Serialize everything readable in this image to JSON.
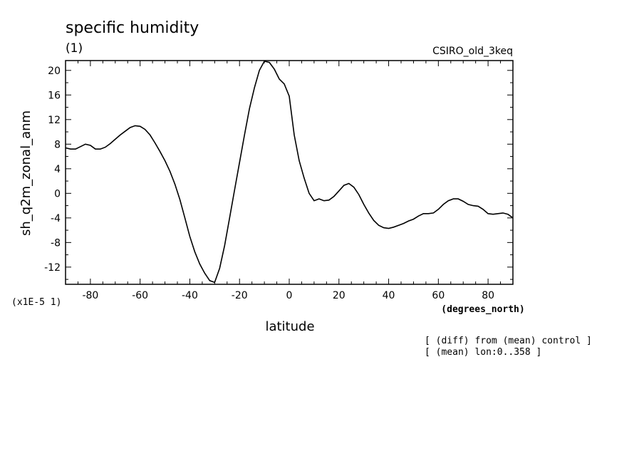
{
  "chart_data": {
    "type": "line",
    "title": "specific humidity",
    "subtitle": "(1)",
    "model_label": "CSIRO_old_3keq",
    "xlabel": "latitude",
    "xunits": "(degrees_north)",
    "ylabel": "sh_q2m_zonal_anm",
    "yscale_label": "(x1E-5 1)",
    "notes": [
      "[ (diff) from (mean) control ]",
      "[ (mean) lon:0..358 ]"
    ],
    "xlim": [
      -90,
      90
    ],
    "ylim": [
      -14.8,
      21.6
    ],
    "xticks": [
      -80,
      -60,
      -40,
      -20,
      0,
      20,
      40,
      60,
      80
    ],
    "yticks": [
      -12,
      -8,
      -4,
      0,
      4,
      8,
      12,
      16,
      20
    ],
    "series": [
      {
        "x": [
          -90,
          -88,
          -86,
          -84,
          -82,
          -80,
          -78,
          -76,
          -74,
          -72,
          -70,
          -68,
          -66,
          -64,
          -62,
          -60,
          -58,
          -56,
          -54,
          -52,
          -50,
          -48,
          -46,
          -44,
          -42,
          -40,
          -38,
          -36,
          -34,
          -32,
          -30,
          -28,
          -26,
          -24,
          -22,
          -20,
          -18,
          -16,
          -14,
          -12,
          -10,
          -8,
          -6,
          -4,
          -2,
          0,
          2,
          4,
          6,
          8,
          10,
          12,
          14,
          16,
          18,
          20,
          22,
          24,
          26,
          28,
          30,
          32,
          34,
          36,
          38,
          40,
          42,
          44,
          46,
          48,
          50,
          52,
          54,
          56,
          58,
          60,
          62,
          64,
          66,
          68,
          70,
          72,
          74,
          76,
          78,
          80,
          82,
          84,
          86,
          88,
          90
        ],
        "y": [
          7.4,
          7.2,
          7.2,
          7.6,
          8.0,
          7.8,
          7.2,
          7.2,
          7.5,
          8.1,
          8.8,
          9.5,
          10.1,
          10.7,
          11.0,
          10.9,
          10.4,
          9.5,
          8.2,
          6.8,
          5.3,
          3.6,
          1.5,
          -1.0,
          -4.0,
          -7.0,
          -9.5,
          -11.5,
          -13.0,
          -14.2,
          -14.5,
          -12.2,
          -8.5,
          -4.0,
          0.5,
          5.0,
          9.5,
          13.8,
          17.2,
          20.0,
          21.5,
          21.3,
          20.2,
          18.6,
          17.8,
          15.8,
          9.5,
          5.3,
          2.5,
          0.0,
          -1.2,
          -0.9,
          -1.2,
          -1.1,
          -0.5,
          0.4,
          1.3,
          1.6,
          1.0,
          -0.2,
          -1.8,
          -3.2,
          -4.4,
          -5.2,
          -5.6,
          -5.7,
          -5.5,
          -5.2,
          -4.9,
          -4.5,
          -4.2,
          -3.7,
          -3.3,
          -3.3,
          -3.2,
          -2.6,
          -1.8,
          -1.2,
          -0.9,
          -0.9,
          -1.3,
          -1.8,
          -2.0,
          -2.1,
          -2.6,
          -3.3,
          -3.4,
          -3.3,
          -3.2,
          -3.4,
          -4.0
        ]
      }
    ],
    "colors": {
      "line": "#000000",
      "background": "#ffffff"
    }
  }
}
